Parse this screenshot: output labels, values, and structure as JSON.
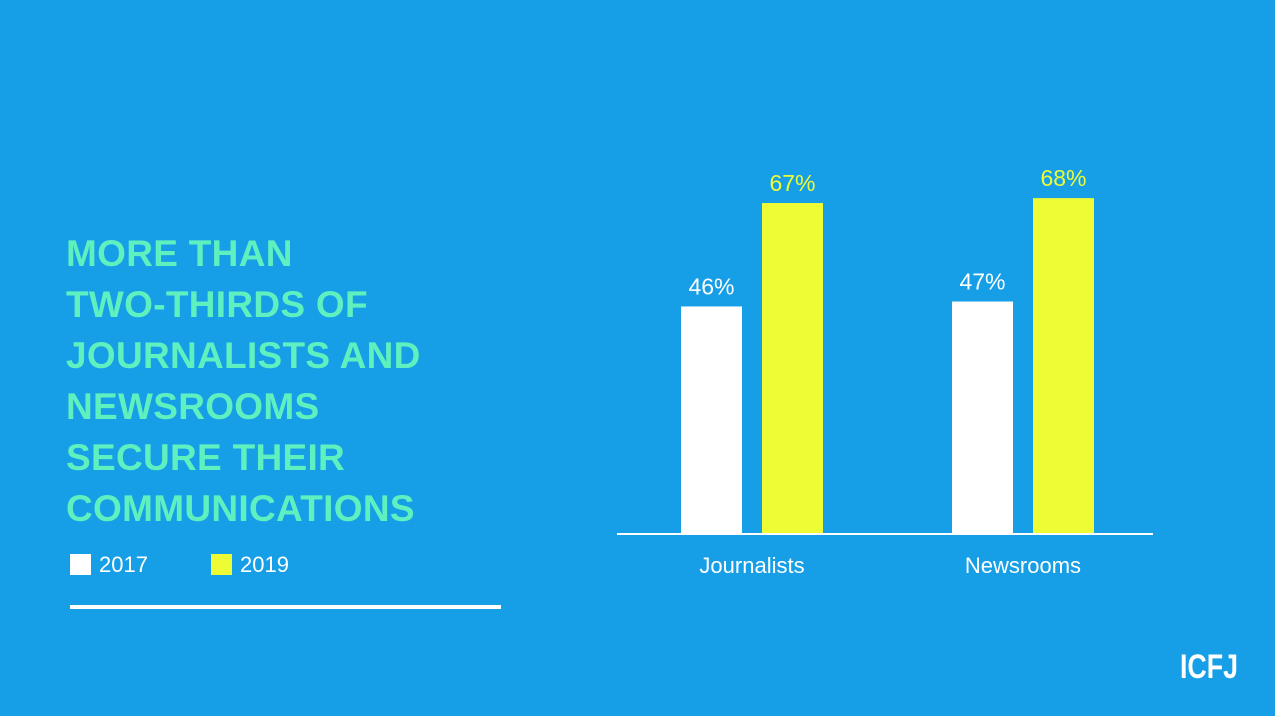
{
  "headline": {
    "lines": [
      "MORE THAN",
      "TWO-THIRDS OF",
      "JOURNALISTS AND",
      "NEWSROOMS",
      "SECURE THEIR",
      "COMMUNICATIONS"
    ]
  },
  "legend": {
    "items": [
      {
        "label": "2017",
        "color": "#ffffff"
      },
      {
        "label": "2019",
        "color": "#eefc36"
      }
    ]
  },
  "logo": {
    "text": "ICFJ"
  },
  "colors": {
    "background": "#169fe6",
    "headline": "#5ff0c0",
    "accent": "#eefc36"
  },
  "chart_data": {
    "type": "bar",
    "categories": [
      "Journalists",
      "Newsrooms"
    ],
    "series": [
      {
        "name": "2017",
        "values": [
          46,
          47
        ],
        "labels": [
          "46%",
          "47%"
        ],
        "color": "#ffffff"
      },
      {
        "name": "2019",
        "values": [
          67,
          68
        ],
        "labels": [
          "67%",
          "68%"
        ],
        "color": "#eefc36"
      }
    ],
    "unit": "%",
    "ylim": [
      0,
      100
    ],
    "grid": false,
    "legend_position": "bottom-left"
  }
}
